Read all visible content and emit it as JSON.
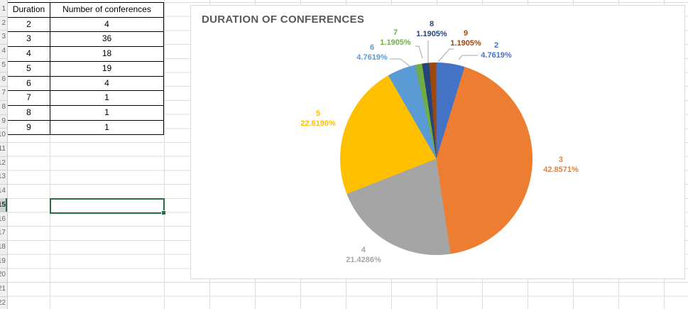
{
  "sheet": {
    "row_numbers": [
      "1",
      "2",
      "3",
      "4",
      "5",
      "6",
      "7",
      "8",
      "9",
      "10",
      "11",
      "12",
      "13",
      "14",
      "15",
      "16",
      "17",
      "18",
      "19",
      "20",
      "21",
      "22"
    ],
    "selected_row": "15",
    "selection_color": "#217346",
    "table": {
      "headers": [
        "Duration",
        "Number of conferences"
      ],
      "rows": [
        [
          "2",
          "4"
        ],
        [
          "3",
          "36"
        ],
        [
          "4",
          "18"
        ],
        [
          "5",
          "19"
        ],
        [
          "6",
          "4"
        ],
        [
          "7",
          "1"
        ],
        [
          "8",
          "1"
        ],
        [
          "9",
          "1"
        ]
      ]
    }
  },
  "chart_data": {
    "type": "pie",
    "title": "DURATION OF CONFERENCES",
    "title_color": "#595959",
    "categories": [
      "2",
      "3",
      "4",
      "5",
      "6",
      "7",
      "8",
      "9"
    ],
    "values": [
      4,
      36,
      18,
      19,
      4,
      1,
      1,
      1
    ],
    "percent_labels": [
      "4.7619%",
      "42.8571%",
      "21.4286%",
      "22.6190%",
      "4.7619%",
      "1.1905%",
      "1.1905%",
      "1.1905%"
    ],
    "colors": [
      "#4472C4",
      "#ED7D31",
      "#A5A5A5",
      "#FFC000",
      "#5B9BD5",
      "#70AD47",
      "#264478",
      "#9E480E"
    ],
    "start_angle_deg": 0,
    "direction": "clockwise",
    "legend": "none",
    "label_style": "category-and-percentage",
    "leader_line_color": "#A6A6A6"
  }
}
